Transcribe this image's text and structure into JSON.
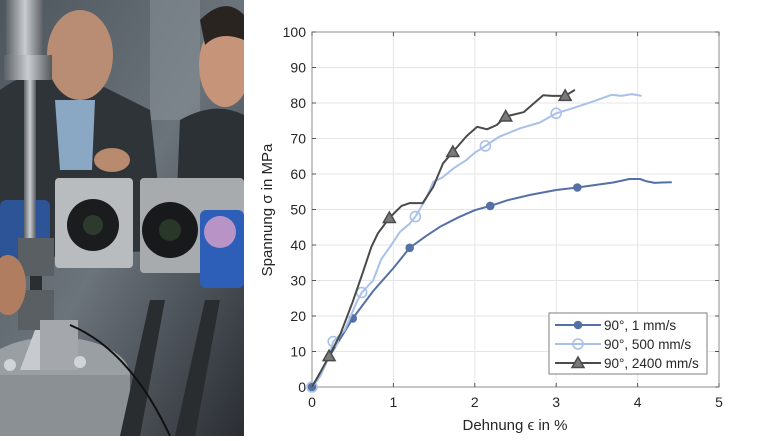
{
  "photo": {
    "description": "Laboratory photo: tensile testing machine with specimen clamped, two high-speed cameras and blue light source; two men observing",
    "alt_label": "Test setup photo"
  },
  "chart_data": {
    "type": "line",
    "title": "",
    "xlabel": "Dehnung ϵ in %",
    "ylabel": "Spannung σ in MPa",
    "xlim": [
      0,
      5
    ],
    "ylim": [
      0,
      100
    ],
    "xticks": [
      0,
      1,
      2,
      3,
      4,
      5
    ],
    "yticks": [
      0,
      10,
      20,
      30,
      40,
      50,
      60,
      70,
      80,
      90,
      100
    ],
    "grid": true,
    "legend_position": "lower right",
    "series": [
      {
        "name": "90°, 1 mm/s",
        "color": "#5470a5",
        "marker": "filled-circle",
        "x": [
          0,
          0.1,
          0.25,
          0.5,
          0.75,
          1.0,
          1.2,
          1.4,
          1.57,
          1.8,
          2.0,
          2.19,
          2.4,
          2.68,
          3.0,
          3.26,
          3.5,
          3.7,
          3.9,
          4.03,
          4.1,
          4.21,
          4.3,
          4.42
        ],
        "y": [
          0,
          4,
          10,
          19.3,
          27,
          33.5,
          39.2,
          42.5,
          45.1,
          47.8,
          49.8,
          51,
          52.6,
          54.1,
          55.5,
          56.2,
          57,
          57.6,
          58.6,
          58.6,
          58,
          57.5,
          57.6,
          57.7
        ],
        "marker_x": [
          0,
          0.5,
          1.2,
          2.19,
          3.26
        ],
        "marker_y": [
          0,
          19.3,
          39.2,
          51,
          56.2
        ]
      },
      {
        "name": "90°, 500 mm/s",
        "color": "#a9c1e8",
        "marker": "open-circle",
        "x": [
          0,
          0.1,
          0.2,
          0.26,
          0.4,
          0.55,
          0.61,
          0.75,
          0.85,
          0.96,
          1.08,
          1.2,
          1.27,
          1.4,
          1.49,
          1.6,
          1.74,
          1.9,
          2.0,
          2.13,
          2.3,
          2.56,
          2.8,
          3.0,
          3.2,
          3.45,
          3.68,
          3.8,
          3.93,
          4.05
        ],
        "y": [
          0,
          3,
          8,
          12.8,
          16,
          24,
          26.6,
          30,
          36,
          39.5,
          43.7,
          46,
          48,
          53,
          57.8,
          59,
          61.6,
          64,
          66,
          67.9,
          70.5,
          72.9,
          74.5,
          77.1,
          78.5,
          80.4,
          82.3,
          82,
          82.5,
          82
        ],
        "marker_x": [
          0,
          0.26,
          0.61,
          1.27,
          2.13,
          3.0
        ],
        "marker_y": [
          0,
          12.8,
          26.6,
          48,
          67.9,
          77.1
        ]
      },
      {
        "name": "90°, 2400 mm/s",
        "color": "#4a4a4a",
        "marker": "triangle",
        "x": [
          0,
          0.1,
          0.21,
          0.35,
          0.5,
          0.62,
          0.73,
          0.81,
          0.95,
          1.1,
          1.2,
          1.36,
          1.49,
          1.61,
          1.73,
          1.9,
          2.03,
          2.15,
          2.27,
          2.38,
          2.6,
          2.84,
          2.95,
          3.11,
          3.23
        ],
        "y": [
          0,
          4,
          8.7,
          15,
          24,
          32,
          39.5,
          43.3,
          47.6,
          51,
          51.8,
          51.8,
          56.4,
          63,
          66.2,
          70.7,
          73.3,
          72.6,
          73.8,
          76.2,
          77.4,
          82.2,
          82,
          82,
          83.7
        ],
        "marker_x": [
          0.21,
          0.95,
          1.73,
          2.38,
          3.11
        ],
        "marker_y": [
          8.7,
          47.6,
          66.2,
          76.2,
          82
        ]
      }
    ]
  }
}
